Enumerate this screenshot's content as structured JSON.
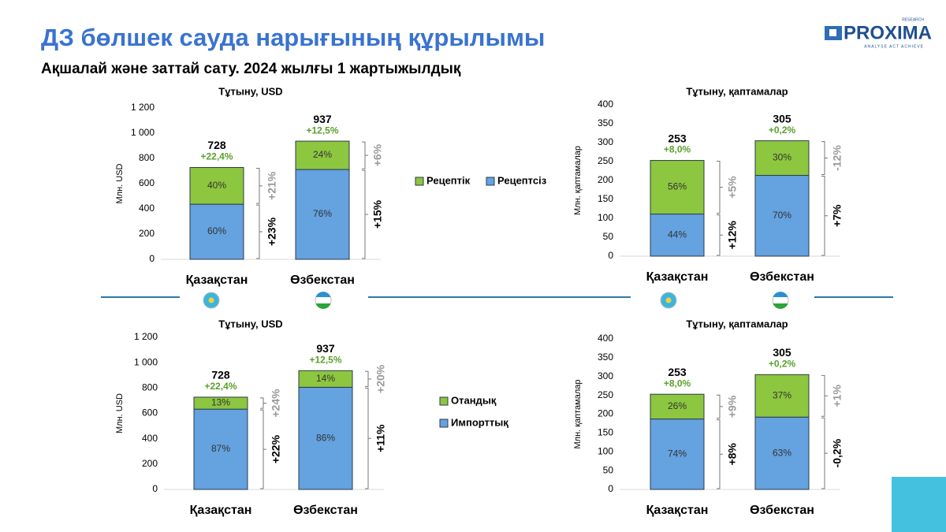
{
  "title": "ДЗ бөлшек сауда нарығының құрылымы",
  "subtitle": "Ақшалай және заттай сату. 2024 жылғы 1 жартыжылдық",
  "logo": {
    "name": "PROXIMA",
    "top": "RESEARCH",
    "tagline": "ANALYSE ACT ACHIEVE"
  },
  "chart_data": [
    {
      "type": "stacked_bar",
      "title": "Тұтыну, USD",
      "y_label": "Млн. USD",
      "legend": "horizontal",
      "categories": [
        "Қазақстан",
        "Өзбекстан"
      ],
      "ylim": [
        0,
        1200
      ],
      "yticks": [
        0,
        200,
        400,
        600,
        800,
        {
          "value": 1000,
          "label": "1 000"
        },
        {
          "value": 1200,
          "label": "1 200"
        }
      ],
      "totals": [
        728,
        937
      ],
      "total_growth": [
        "+22,4%",
        "+12,5%"
      ],
      "series": [
        {
          "name": "Рецептсіз",
          "color": "#64a2e0",
          "values": [
            436.8,
            712.1
          ],
          "share_labels": [
            "60%",
            "76%"
          ],
          "growth": [
            "+23%",
            "+15%"
          ],
          "growth_color": "#000000"
        },
        {
          "name": "Рецептік",
          "color": "#8dc63f",
          "values": [
            291.2,
            224.9
          ],
          "share_labels": [
            "40%",
            "24%"
          ],
          "growth": [
            "+21%",
            "+6%"
          ],
          "growth_color": "#9a9a9a"
        }
      ]
    },
    {
      "type": "stacked_bar",
      "title": "Тұтыну, қаптамалар",
      "y_label": "Млн. қаптамалар",
      "legend": "none",
      "categories": [
        "Қазақстан",
        "Өзбекстан"
      ],
      "ylim": [
        0,
        400
      ],
      "yticks": [
        0,
        50,
        100,
        150,
        200,
        250,
        300,
        350,
        400
      ],
      "totals": [
        253,
        305
      ],
      "total_growth": [
        "+8,0%",
        "+0,2%"
      ],
      "series": [
        {
          "name": "Рецептсіз",
          "color": "#64a2e0",
          "values": [
            111.3,
            213.5
          ],
          "share_labels": [
            "44%",
            "70%"
          ],
          "growth": [
            "+12%",
            "+7%"
          ],
          "growth_color": "#000000"
        },
        {
          "name": "Рецептік",
          "color": "#8dc63f",
          "values": [
            141.7,
            91.5
          ],
          "share_labels": [
            "56%",
            "30%"
          ],
          "growth": [
            "+5%",
            "-12%"
          ],
          "growth_color": "#9a9a9a"
        }
      ]
    },
    {
      "type": "stacked_bar",
      "title": "Тұтыну, USD",
      "y_label": "Млн. USD",
      "legend": "vertical",
      "categories": [
        "Қазақстан",
        "Өзбекстан"
      ],
      "ylim": [
        0,
        1200
      ],
      "yticks": [
        0,
        200,
        400,
        600,
        800,
        {
          "value": 1000,
          "label": "1 000"
        },
        {
          "value": 1200,
          "label": "1 200"
        }
      ],
      "totals": [
        728,
        937
      ],
      "total_growth": [
        "+22,4%",
        "+12,5%"
      ],
      "series": [
        {
          "name": "Импорттық",
          "color": "#64a2e0",
          "values": [
            633.4,
            805.8
          ],
          "share_labels": [
            "87%",
            "86%"
          ],
          "growth": [
            "+22%",
            "+11%"
          ],
          "growth_color": "#000000"
        },
        {
          "name": "Отандық",
          "color": "#8dc63f",
          "values": [
            94.6,
            131.2
          ],
          "share_labels": [
            "13%",
            "14%"
          ],
          "growth": [
            "+24%",
            "+20%"
          ],
          "growth_color": "#9a9a9a"
        }
      ]
    },
    {
      "type": "stacked_bar",
      "title": "Тұтыну, қаптамалар",
      "y_label": "Млн. қаптамалар",
      "legend": "none",
      "categories": [
        "Қазақстан",
        "Өзбекстан"
      ],
      "ylim": [
        0,
        400
      ],
      "yticks": [
        0,
        50,
        100,
        150,
        200,
        250,
        300,
        350,
        400
      ],
      "totals": [
        253,
        305
      ],
      "total_growth": [
        "+8,0%",
        "+0,2%"
      ],
      "series": [
        {
          "name": "Импорттық",
          "color": "#64a2e0",
          "values": [
            187.2,
            192.2
          ],
          "share_labels": [
            "74%",
            "63%"
          ],
          "growth": [
            "+8%",
            "-0,2%"
          ],
          "growth_color": "#000000"
        },
        {
          "name": "Отандық",
          "color": "#8dc63f",
          "values": [
            65.8,
            112.9
          ],
          "share_labels": [
            "26%",
            "37%"
          ],
          "growth": [
            "+9%",
            "+1%"
          ],
          "growth_color": "#9a9a9a"
        }
      ]
    }
  ]
}
